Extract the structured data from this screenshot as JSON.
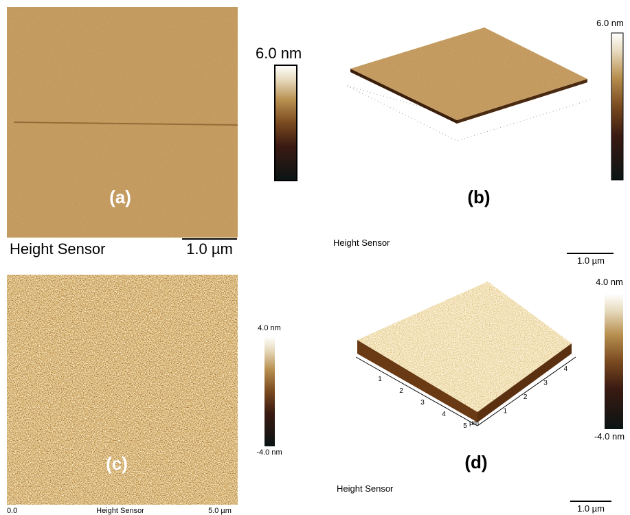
{
  "panels": [
    {
      "label": "(a)",
      "caption": "Height Sensor",
      "scale_bar": "1.0 µm",
      "colorbar_max": "6.0 nm"
    },
    {
      "label": "(b)",
      "caption": "Height Sensor",
      "scale_bar": "1.0 µm",
      "colorbar_max": "6.0 nm"
    },
    {
      "label": "(c)",
      "caption": "Height Sensor",
      "axis_start": "0.0",
      "axis_end": "5.0 µm",
      "colorbar_max": "4.0 nm",
      "colorbar_min": "-4.0 nm"
    },
    {
      "label": "(d)",
      "caption": "Height Sensor",
      "scale_bar": "1.0 µm",
      "colorbar_max": "4.0 nm",
      "colorbar_min": "-4.0 nm",
      "x_axis_ticks": [
        "1",
        "2",
        "3",
        "4",
        "5"
      ],
      "axis_unit": "µm",
      "y_axis_ticks": [
        "1",
        "2",
        "3",
        "4"
      ]
    }
  ]
}
